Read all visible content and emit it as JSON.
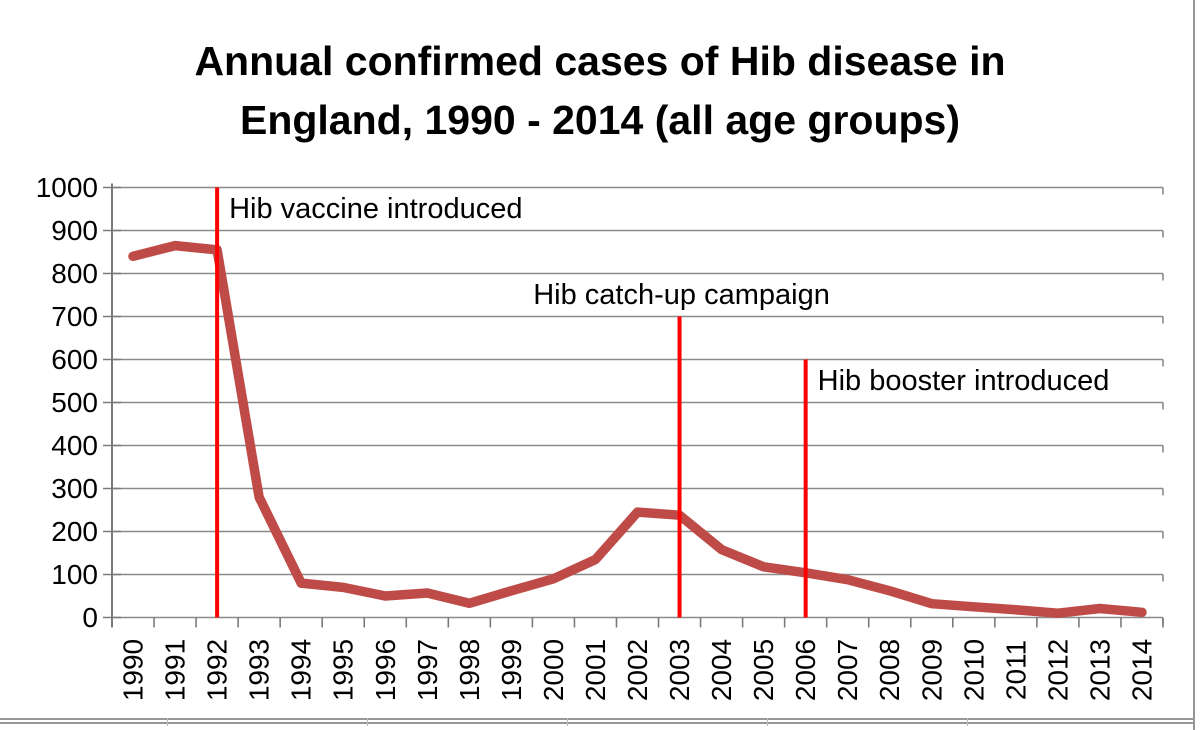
{
  "title": {
    "line1": "Annual confirmed cases of Hib disease in",
    "line2": "England, 1990 - 2014 (all age groups)"
  },
  "chart_data": {
    "type": "line",
    "title": "Annual confirmed cases of Hib disease in England, 1990 - 2014 (all age groups)",
    "x": [
      "1990",
      "1991",
      "1992",
      "1993",
      "1994",
      "1995",
      "1996",
      "1997",
      "1998",
      "1999",
      "2000",
      "2001",
      "2002",
      "2003",
      "2004",
      "2005",
      "2006",
      "2007",
      "2008",
      "2009",
      "2010",
      "2011",
      "2012",
      "2013",
      "2014"
    ],
    "series": [
      {
        "name": "Annual confirmed cases of Hib disease",
        "color": "#bf4b48",
        "values": [
          840,
          865,
          855,
          280,
          80,
          70,
          50,
          57,
          33,
          62,
          90,
          135,
          245,
          238,
          158,
          118,
          104,
          88,
          62,
          32,
          25,
          18,
          10,
          21,
          12
        ]
      }
    ],
    "ylim": [
      0,
      1000
    ],
    "ytick_step": 100,
    "ytick_labels": [
      "0",
      "100",
      "200",
      "300",
      "400",
      "500",
      "600",
      "700",
      "800",
      "900",
      "1000"
    ],
    "grid": true,
    "gridline_color": "#8a8a8a",
    "axis_color": "#7a7a7a",
    "annotation_line_color": "#ff0000",
    "annotations": [
      {
        "label": "Hib vaccine introduced",
        "year": "1992",
        "line_top_value": 1000,
        "label_center_value": 950,
        "label_side": "right"
      },
      {
        "label": "Hib catch-up campaign",
        "year": "2003",
        "line_top_value": 700,
        "label_center_value": 750,
        "label_side": "center"
      },
      {
        "label": "Hib booster introduced",
        "year": "2006",
        "line_top_value": 600,
        "label_center_value": 550,
        "label_side": "right"
      }
    ],
    "legend": "none"
  }
}
